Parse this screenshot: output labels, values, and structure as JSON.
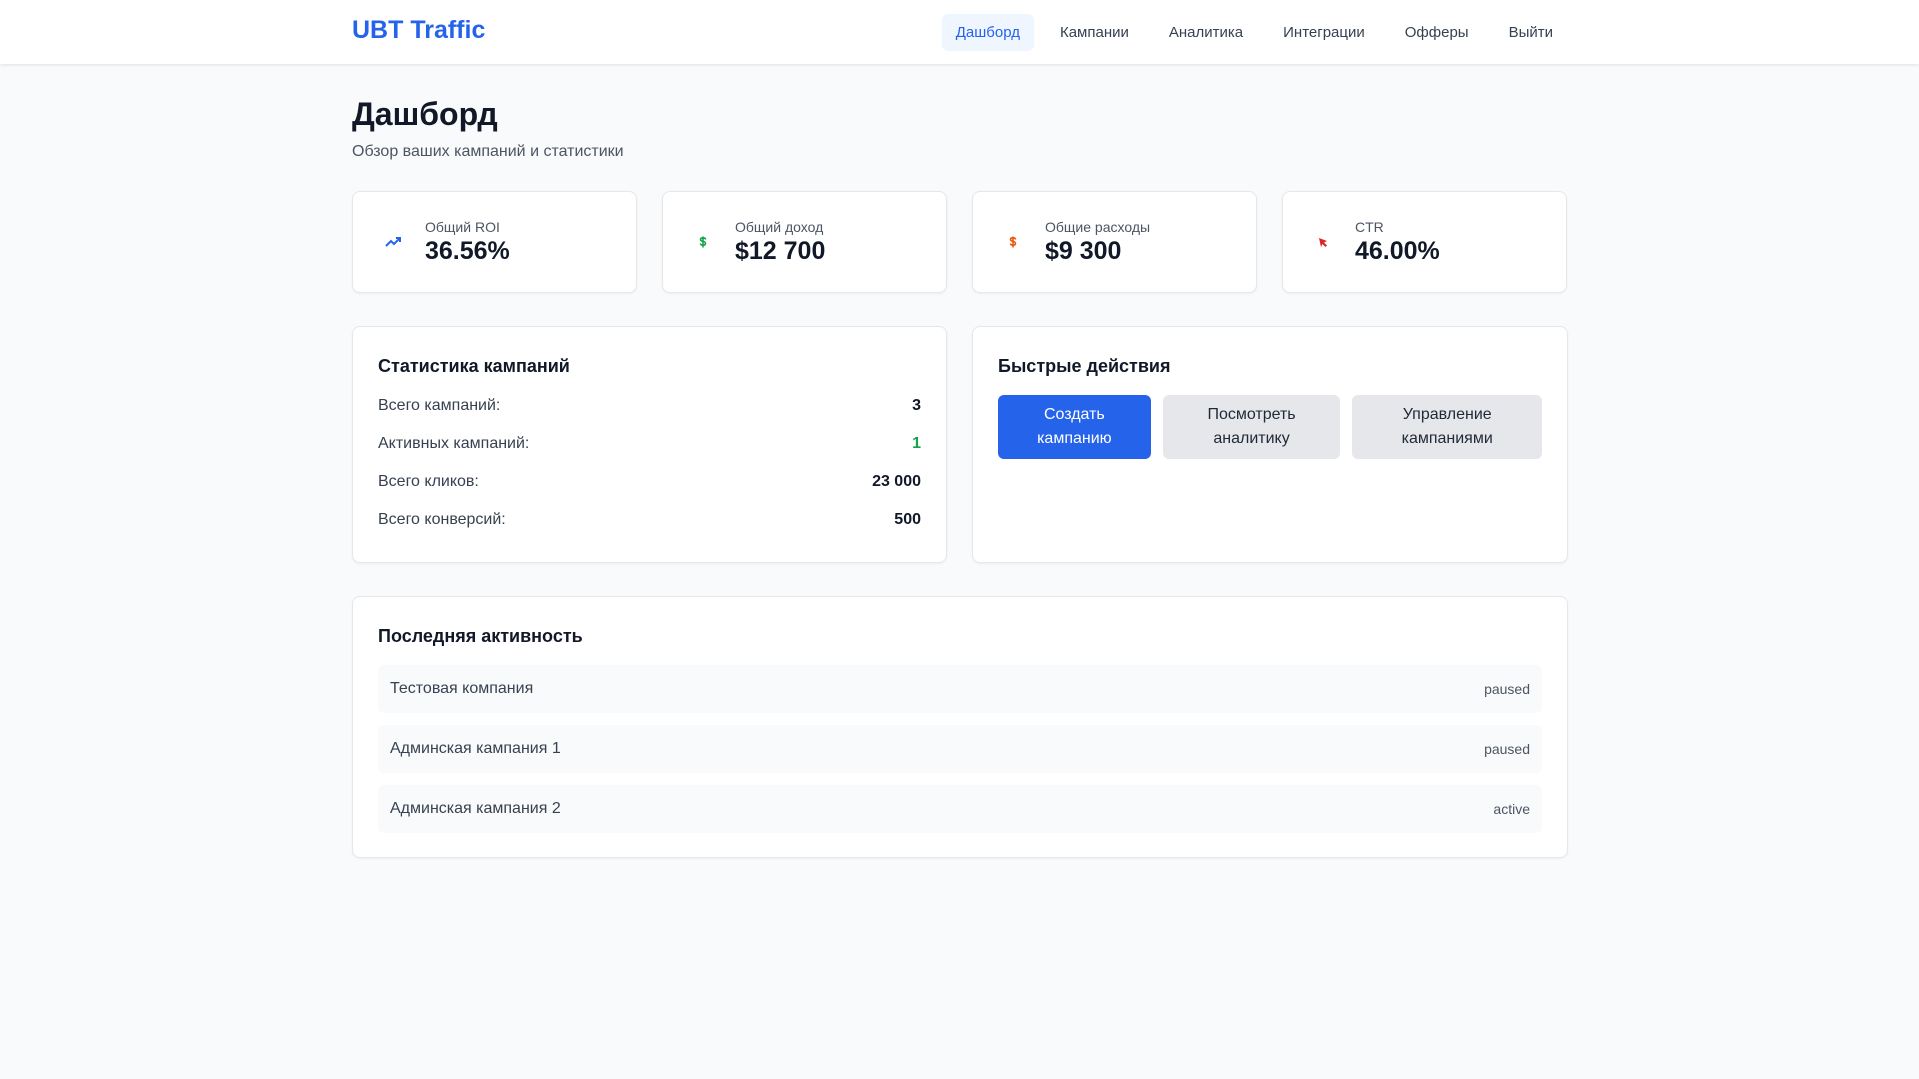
{
  "header": {
    "logo": "UBT Traffic",
    "nav": [
      "Дашборд",
      "Кампании",
      "Аналитика",
      "Интеграции",
      "Офферы",
      "Выйти"
    ]
  },
  "page": {
    "title": "Дашборд",
    "subtitle": "Обзор ваших кампаний и статистики"
  },
  "stats": [
    {
      "label": "Общий ROI",
      "value": "36.56%"
    },
    {
      "label": "Общий доход",
      "value": "$12 700"
    },
    {
      "label": "Общие расходы",
      "value": "$9 300"
    },
    {
      "label": "CTR",
      "value": "46.00%"
    }
  ],
  "campaign_stats": {
    "title": "Статистика кампаний",
    "rows": [
      {
        "label": "Всего кампаний:",
        "value": "3"
      },
      {
        "label": "Активных кампаний:",
        "value": "1"
      },
      {
        "label": "Всего кликов:",
        "value": "23 000"
      },
      {
        "label": "Всего конверсий:",
        "value": "500"
      }
    ]
  },
  "quick_actions": {
    "title": "Быстрые действия",
    "buttons": [
      "Создать кампанию",
      "Посмотреть аналитику",
      "Управление кампаниями"
    ]
  },
  "activity": {
    "title": "Последняя активность",
    "items": [
      {
        "name": "Тестовая компания",
        "status": "paused"
      },
      {
        "name": "Админская кампания 1",
        "status": "paused"
      },
      {
        "name": "Админская кампания 2",
        "status": "active"
      }
    ]
  }
}
